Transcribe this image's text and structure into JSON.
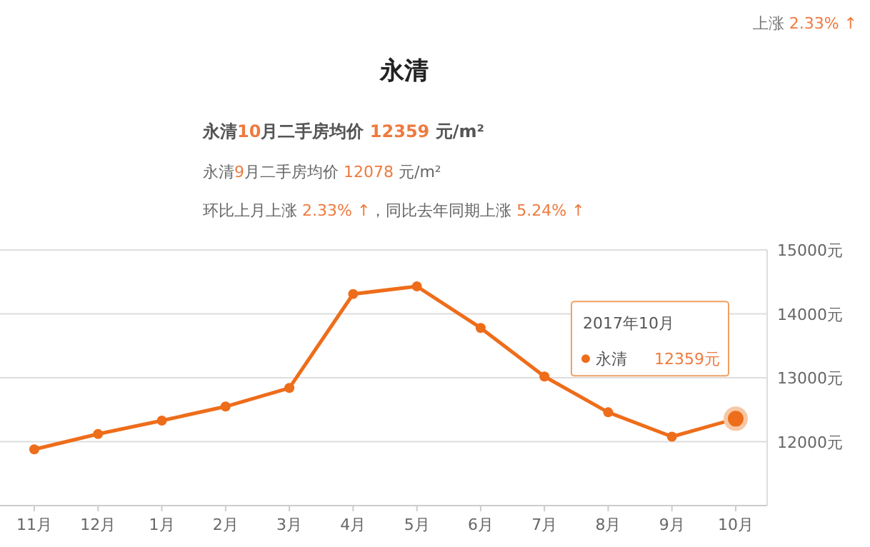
{
  "chart_data": {
    "type": "line",
    "title": "永清",
    "subtitle": "永清10月二手房均价 12359 元/m²",
    "annotations": [
      "上涨 2.33% ↑",
      "永清9月二手房均价 12078 元/m²",
      "环比上月上涨 2.33% ↑，同比去年同期上涨 5.24% ↑",
      "2017年10月"
    ],
    "categories": [
      "11月",
      "12月",
      "1月",
      "2月",
      "3月",
      "4月",
      "5月",
      "6月",
      "7月",
      "8月",
      "9月",
      "10月"
    ],
    "series": [
      {
        "name": "永清",
        "color": "#ee6d1a",
        "values": [
          11880,
          12120,
          12330,
          12550,
          12840,
          14310,
          14430,
          13780,
          13020,
          12460,
          12078,
          12359
        ],
        "value_labels": [
          null,
          null,
          null,
          null,
          null,
          null,
          null,
          null,
          null,
          null,
          null,
          "12359元"
        ]
      }
    ],
    "ylim": [
      11000,
      15000
    ],
    "yticks": [
      {
        "value": 12000,
        "label": "12000元"
      },
      {
        "value": 13000,
        "label": "13000元"
      },
      {
        "value": 14000,
        "label": "14000元"
      },
      {
        "value": 15000,
        "label": "15000元"
      }
    ],
    "grid": "y",
    "marker": "circle",
    "legend": "right",
    "line_style": "solid"
  }
}
